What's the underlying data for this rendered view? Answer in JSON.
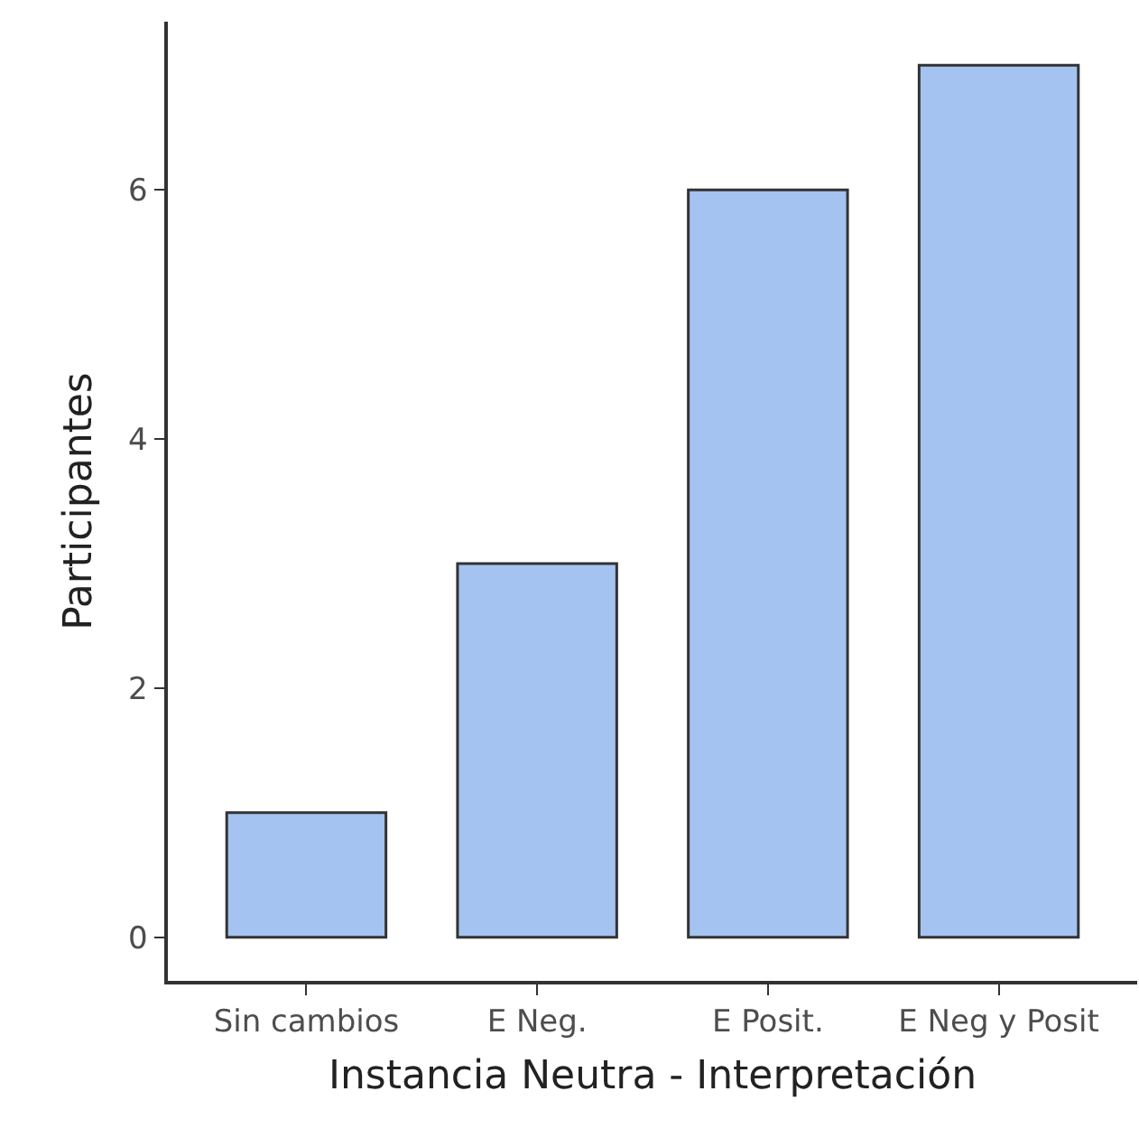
{
  "chart_data": {
    "type": "bar",
    "xlabel": "Instancia Neutra - Interpretación",
    "ylabel": "Participantes",
    "categories": [
      "Sin cambios",
      "E Neg.",
      "E Posit.",
      "E Neg y Posit"
    ],
    "values": [
      1,
      3,
      6,
      7
    ],
    "color": "#a4c3f0",
    "ylim": [
      -0.35,
      7.35
    ],
    "yticks": [
      0,
      2,
      4,
      6
    ],
    "grid": false
  }
}
